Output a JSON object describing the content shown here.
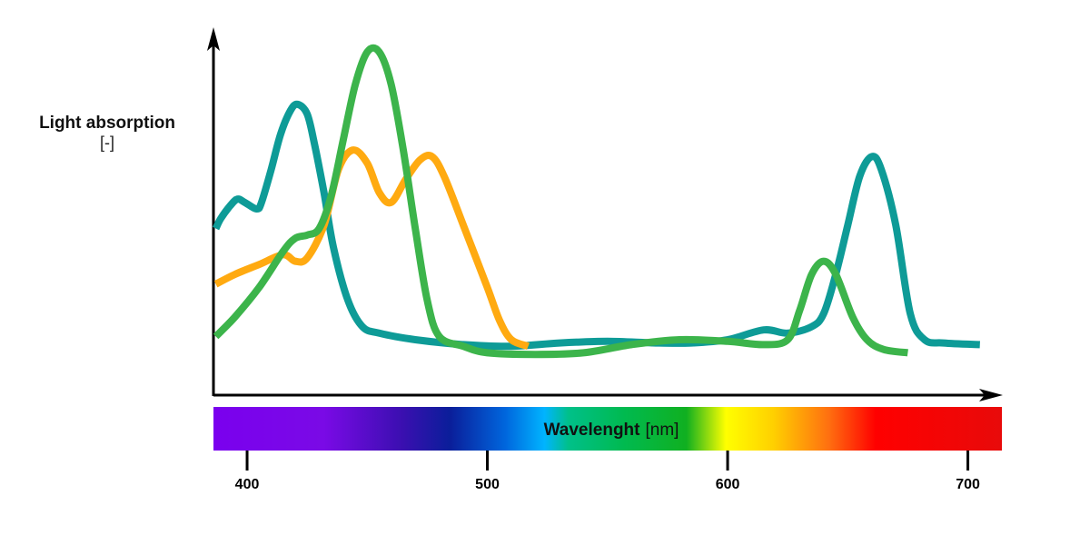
{
  "chart_data": {
    "type": "line",
    "ylabel": "Light absorption",
    "yunit": "[-]",
    "xlabel": "Wavelenght",
    "xunit": "[nm]",
    "xlim": [
      386,
      710
    ],
    "ylim": [
      0,
      1
    ],
    "grid": false,
    "legend": "none",
    "x_ticks": [
      400,
      500,
      600,
      700
    ],
    "series": [
      {
        "color": "#0e9b97",
        "points": [
          [
            387,
            0.44
          ],
          [
            389,
            0.47
          ],
          [
            393,
            0.51
          ],
          [
            396,
            0.53
          ],
          [
            399,
            0.52
          ],
          [
            404,
            0.5
          ],
          [
            406,
            0.52
          ],
          [
            410,
            0.62
          ],
          [
            414,
            0.73
          ],
          [
            418,
            0.8
          ],
          [
            421,
            0.82
          ],
          [
            425,
            0.79
          ],
          [
            428,
            0.7
          ],
          [
            432,
            0.55
          ],
          [
            436,
            0.38
          ],
          [
            442,
            0.22
          ],
          [
            448,
            0.14
          ],
          [
            455,
            0.12
          ],
          [
            470,
            0.1
          ],
          [
            490,
            0.085
          ],
          [
            510,
            0.08
          ],
          [
            530,
            0.09
          ],
          [
            550,
            0.095
          ],
          [
            570,
            0.09
          ],
          [
            585,
            0.09
          ],
          [
            600,
            0.1
          ],
          [
            615,
            0.13
          ],
          [
            625,
            0.12
          ],
          [
            635,
            0.14
          ],
          [
            640,
            0.18
          ],
          [
            645,
            0.3
          ],
          [
            650,
            0.45
          ],
          [
            655,
            0.6
          ],
          [
            660,
            0.66
          ],
          [
            664,
            0.62
          ],
          [
            670,
            0.45
          ],
          [
            676,
            0.18
          ],
          [
            682,
            0.1
          ],
          [
            690,
            0.09
          ],
          [
            705,
            0.085
          ]
        ]
      },
      {
        "color": "#ffaa11",
        "points": [
          [
            387,
            0.27
          ],
          [
            395,
            0.3
          ],
          [
            405,
            0.33
          ],
          [
            415,
            0.36
          ],
          [
            420,
            0.34
          ],
          [
            425,
            0.35
          ],
          [
            432,
            0.45
          ],
          [
            438,
            0.62
          ],
          [
            444,
            0.68
          ],
          [
            450,
            0.64
          ],
          [
            455,
            0.55
          ],
          [
            460,
            0.52
          ],
          [
            466,
            0.59
          ],
          [
            472,
            0.65
          ],
          [
            477,
            0.66
          ],
          [
            482,
            0.6
          ],
          [
            490,
            0.45
          ],
          [
            500,
            0.26
          ],
          [
            505,
            0.16
          ],
          [
            510,
            0.1
          ],
          [
            517,
            0.08
          ]
        ]
      },
      {
        "color": "#3cb44b",
        "points": [
          [
            387,
            0.11
          ],
          [
            395,
            0.17
          ],
          [
            405,
            0.26
          ],
          [
            415,
            0.37
          ],
          [
            420,
            0.41
          ],
          [
            425,
            0.42
          ],
          [
            430,
            0.44
          ],
          [
            435,
            0.54
          ],
          [
            440,
            0.71
          ],
          [
            445,
            0.88
          ],
          [
            450,
            0.98
          ],
          [
            455,
            0.98
          ],
          [
            460,
            0.88
          ],
          [
            465,
            0.68
          ],
          [
            470,
            0.44
          ],
          [
            475,
            0.22
          ],
          [
            480,
            0.11
          ],
          [
            490,
            0.08
          ],
          [
            500,
            0.06
          ],
          [
            520,
            0.055
          ],
          [
            540,
            0.06
          ],
          [
            560,
            0.085
          ],
          [
            580,
            0.1
          ],
          [
            600,
            0.095
          ],
          [
            615,
            0.085
          ],
          [
            625,
            0.1
          ],
          [
            630,
            0.19
          ],
          [
            635,
            0.3
          ],
          [
            640,
            0.34
          ],
          [
            645,
            0.3
          ],
          [
            652,
            0.17
          ],
          [
            658,
            0.1
          ],
          [
            665,
            0.07
          ],
          [
            675,
            0.06
          ]
        ]
      }
    ]
  }
}
